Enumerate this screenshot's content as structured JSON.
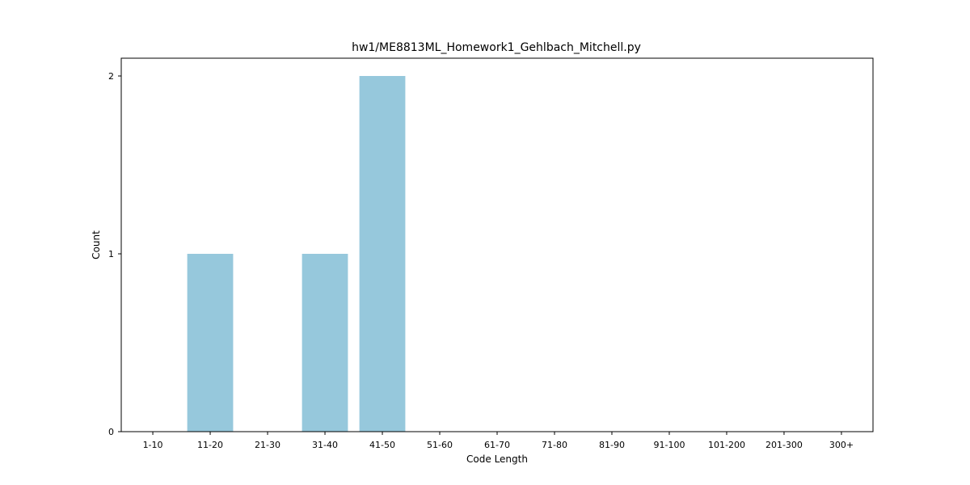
{
  "chart_data": {
    "type": "bar",
    "title": "hw1/ME8813ML_Homework1_Gehlbach_Mitchell.py",
    "xlabel": "Code Length",
    "ylabel": "Count",
    "categories": [
      "1-10",
      "11-20",
      "21-30",
      "31-40",
      "41-50",
      "51-60",
      "61-70",
      "71-80",
      "81-90",
      "91-100",
      "101-200",
      "201-300",
      "300+"
    ],
    "values": [
      0,
      1,
      0,
      1,
      2,
      0,
      0,
      0,
      0,
      0,
      0,
      0,
      0
    ],
    "ylim": [
      0,
      2.1
    ],
    "yticks": [
      0,
      1,
      2
    ],
    "bar_color": "#96c8dc",
    "grid": false,
    "legend": "none"
  }
}
